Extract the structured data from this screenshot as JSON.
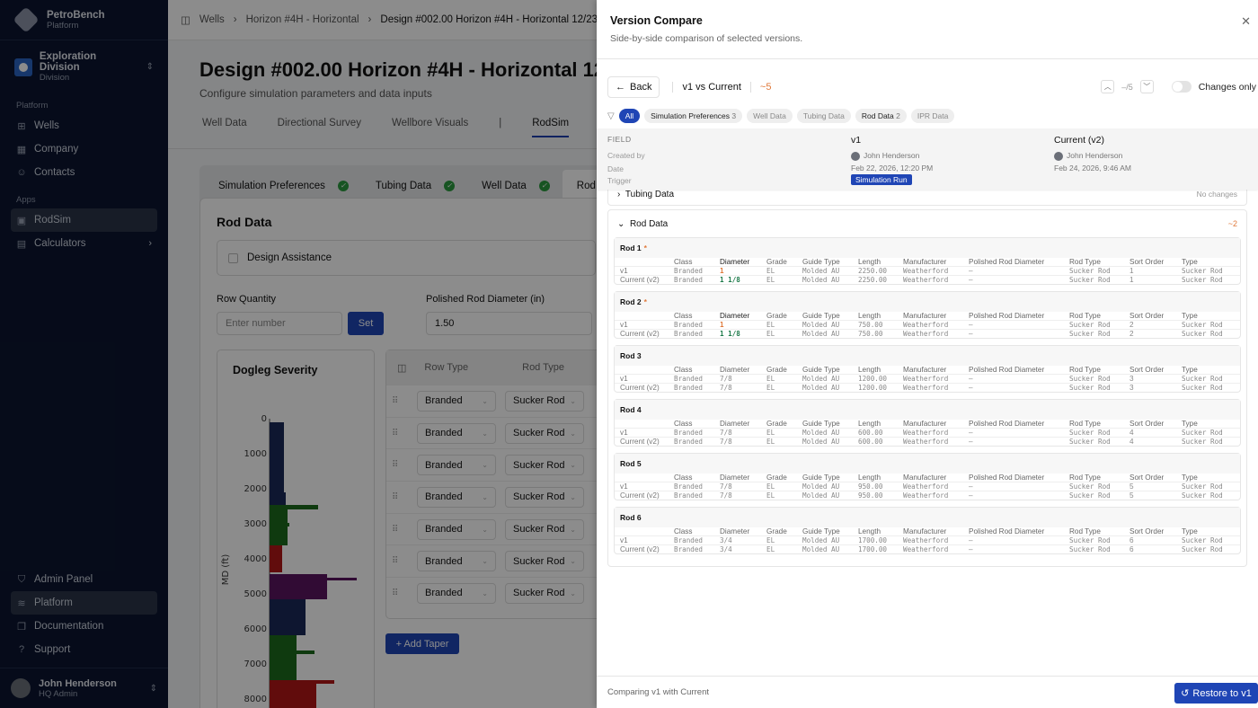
{
  "sidebar": {
    "brand": {
      "name": "PetroBench",
      "sub": "Platform"
    },
    "division": {
      "name": "Exploration Division",
      "type": "Division"
    },
    "sections": [
      {
        "label": "Platform",
        "items": [
          {
            "label": "Wells",
            "icon": "well-icon"
          },
          {
            "label": "Company",
            "icon": "building-icon"
          },
          {
            "label": "Contacts",
            "icon": "users-icon"
          }
        ]
      },
      {
        "label": "Apps",
        "items": [
          {
            "label": "RodSim",
            "icon": "rodsim-icon",
            "active": true
          },
          {
            "label": "Calculators",
            "icon": "calculator-icon"
          }
        ]
      }
    ],
    "bottom": [
      {
        "label": "Admin Panel"
      },
      {
        "label": "Platform"
      },
      {
        "label": "Documentation"
      },
      {
        "label": "Support"
      }
    ],
    "user": {
      "name": "John Henderson",
      "role": "HQ Admin"
    }
  },
  "main": {
    "breadcrumb": [
      "Wells",
      "Horizon #4H - Horizontal",
      "Design #002.00 Horizon #4H - Horizontal 12/23/25"
    ],
    "title": "Design #002.00 Horizon #4H - Horizontal 12/23/25",
    "subtitle": "Configure simulation parameters and data inputs",
    "tabs": [
      "Well Data",
      "Directional Survey",
      "Wellbore Visuals",
      "RodSim"
    ],
    "steps": [
      "Simulation Preferences",
      "Tubing Data",
      "Well Data",
      "Rod Data"
    ],
    "card_title": "Rod Data",
    "design_assistance": "Design Assistance",
    "row_quantity_label": "Row Quantity",
    "row_quantity_placeholder": "Enter number",
    "set_label": "Set",
    "polished_label": "Polished Rod Diameter (in)",
    "polished_value": "1.50",
    "dogleg_title": "Dogleg Severity",
    "dogleg_ylabel": "MD (ft)",
    "dogleg_ticks": [
      "0",
      "1000",
      "2000",
      "3000",
      "4000",
      "5000",
      "6000",
      "7000",
      "8000"
    ],
    "table_headers": [
      "Row Type",
      "Rod Type"
    ],
    "rows": [
      {
        "row_type": "Branded",
        "rod_type": "Sucker Rod"
      },
      {
        "row_type": "Branded",
        "rod_type": "Sucker Rod"
      },
      {
        "row_type": "Branded",
        "rod_type": "Sucker Rod"
      },
      {
        "row_type": "Branded",
        "rod_type": "Sucker Rod"
      },
      {
        "row_type": "Branded",
        "rod_type": "Sucker Rod"
      },
      {
        "row_type": "Branded",
        "rod_type": "Sucker Rod"
      },
      {
        "row_type": "Branded",
        "rod_type": "Sucker Rod"
      }
    ],
    "add_taper": "+ Add Taper"
  },
  "panel": {
    "title": "Version Compare",
    "subtitle": "Side-by-side comparison of selected versions.",
    "back": "Back",
    "versions": "v1 vs Current",
    "delta": "~5",
    "nav_counter": "–/5",
    "changes_only": "Changes only",
    "filters": [
      {
        "label": "All",
        "active": true
      },
      {
        "label": "Simulation Preferences",
        "count": "3"
      },
      {
        "label": "Well Data"
      },
      {
        "label": "Tubing Data"
      },
      {
        "label": "Rod Data",
        "count": "2"
      },
      {
        "label": "IPR Data"
      }
    ],
    "meta": {
      "field_label": "FIELD",
      "labels": [
        "Created by",
        "Date",
        "Trigger"
      ],
      "v1": {
        "title": "v1",
        "author": "John Henderson",
        "date": "Feb 22, 2026, 12:20 PM",
        "trigger": "Simulation Run"
      },
      "current": {
        "title": "Current (v2)",
        "author": "John Henderson",
        "date": "Feb 24, 2026, 9:46 AM"
      }
    },
    "tubing_section": {
      "label": "Tubing Data",
      "status": "No changes"
    },
    "rod_section": {
      "label": "Rod Data",
      "delta": "~2"
    },
    "columns": [
      "Class",
      "Diameter",
      "Grade",
      "Guide Type",
      "Length",
      "Manufacturer",
      "Polished Rod Diameter",
      "Rod Type",
      "Sort Order",
      "Type"
    ],
    "rods": [
      {
        "name": "Rod 1",
        "changed": true,
        "v1": [
          "Branded",
          "1",
          "EL",
          "Molded AU",
          "2250.00",
          "Weatherford",
          "–",
          "Sucker Rod",
          "1",
          "Sucker Rod"
        ],
        "v2": [
          "Branded",
          "1 1/8",
          "EL",
          "Molded AU",
          "2250.00",
          "Weatherford",
          "–",
          "Sucker Rod",
          "1",
          "Sucker Rod"
        ]
      },
      {
        "name": "Rod 2",
        "changed": true,
        "v1": [
          "Branded",
          "1",
          "EL",
          "Molded AU",
          "750.00",
          "Weatherford",
          "–",
          "Sucker Rod",
          "2",
          "Sucker Rod"
        ],
        "v2": [
          "Branded",
          "1 1/8",
          "EL",
          "Molded AU",
          "750.00",
          "Weatherford",
          "–",
          "Sucker Rod",
          "2",
          "Sucker Rod"
        ]
      },
      {
        "name": "Rod 3",
        "changed": false,
        "v1": [
          "Branded",
          "7/8",
          "EL",
          "Molded AU",
          "1200.00",
          "Weatherford",
          "–",
          "Sucker Rod",
          "3",
          "Sucker Rod"
        ],
        "v2": [
          "Branded",
          "7/8",
          "EL",
          "Molded AU",
          "1200.00",
          "Weatherford",
          "–",
          "Sucker Rod",
          "3",
          "Sucker Rod"
        ]
      },
      {
        "name": "Rod 4",
        "changed": false,
        "v1": [
          "Branded",
          "7/8",
          "EL",
          "Molded AU",
          "600.00",
          "Weatherford",
          "–",
          "Sucker Rod",
          "4",
          "Sucker Rod"
        ],
        "v2": [
          "Branded",
          "7/8",
          "EL",
          "Molded AU",
          "600.00",
          "Weatherford",
          "–",
          "Sucker Rod",
          "4",
          "Sucker Rod"
        ]
      },
      {
        "name": "Rod 5",
        "changed": false,
        "v1": [
          "Branded",
          "7/8",
          "EL",
          "Molded AU",
          "950.00",
          "Weatherford",
          "–",
          "Sucker Rod",
          "5",
          "Sucker Rod"
        ],
        "v2": [
          "Branded",
          "7/8",
          "EL",
          "Molded AU",
          "950.00",
          "Weatherford",
          "–",
          "Sucker Rod",
          "5",
          "Sucker Rod"
        ]
      },
      {
        "name": "Rod 6",
        "changed": false,
        "v1": [
          "Branded",
          "3/4",
          "EL",
          "Molded AU",
          "1700.00",
          "Weatherford",
          "–",
          "Sucker Rod",
          "6",
          "Sucker Rod"
        ],
        "v2": [
          "Branded",
          "3/4",
          "EL",
          "Molded AU",
          "1700.00",
          "Weatherford",
          "–",
          "Sucker Rod",
          "6",
          "Sucker Rod"
        ]
      }
    ],
    "row_labels": [
      "v1",
      "Current (v2)"
    ],
    "footer_text": "Comparing v1 with Current",
    "restore": "Restore to v1",
    "colors": {
      "accent": "#1f45b5",
      "removed": "#e07a3c",
      "added": "#1d7a4a"
    }
  }
}
